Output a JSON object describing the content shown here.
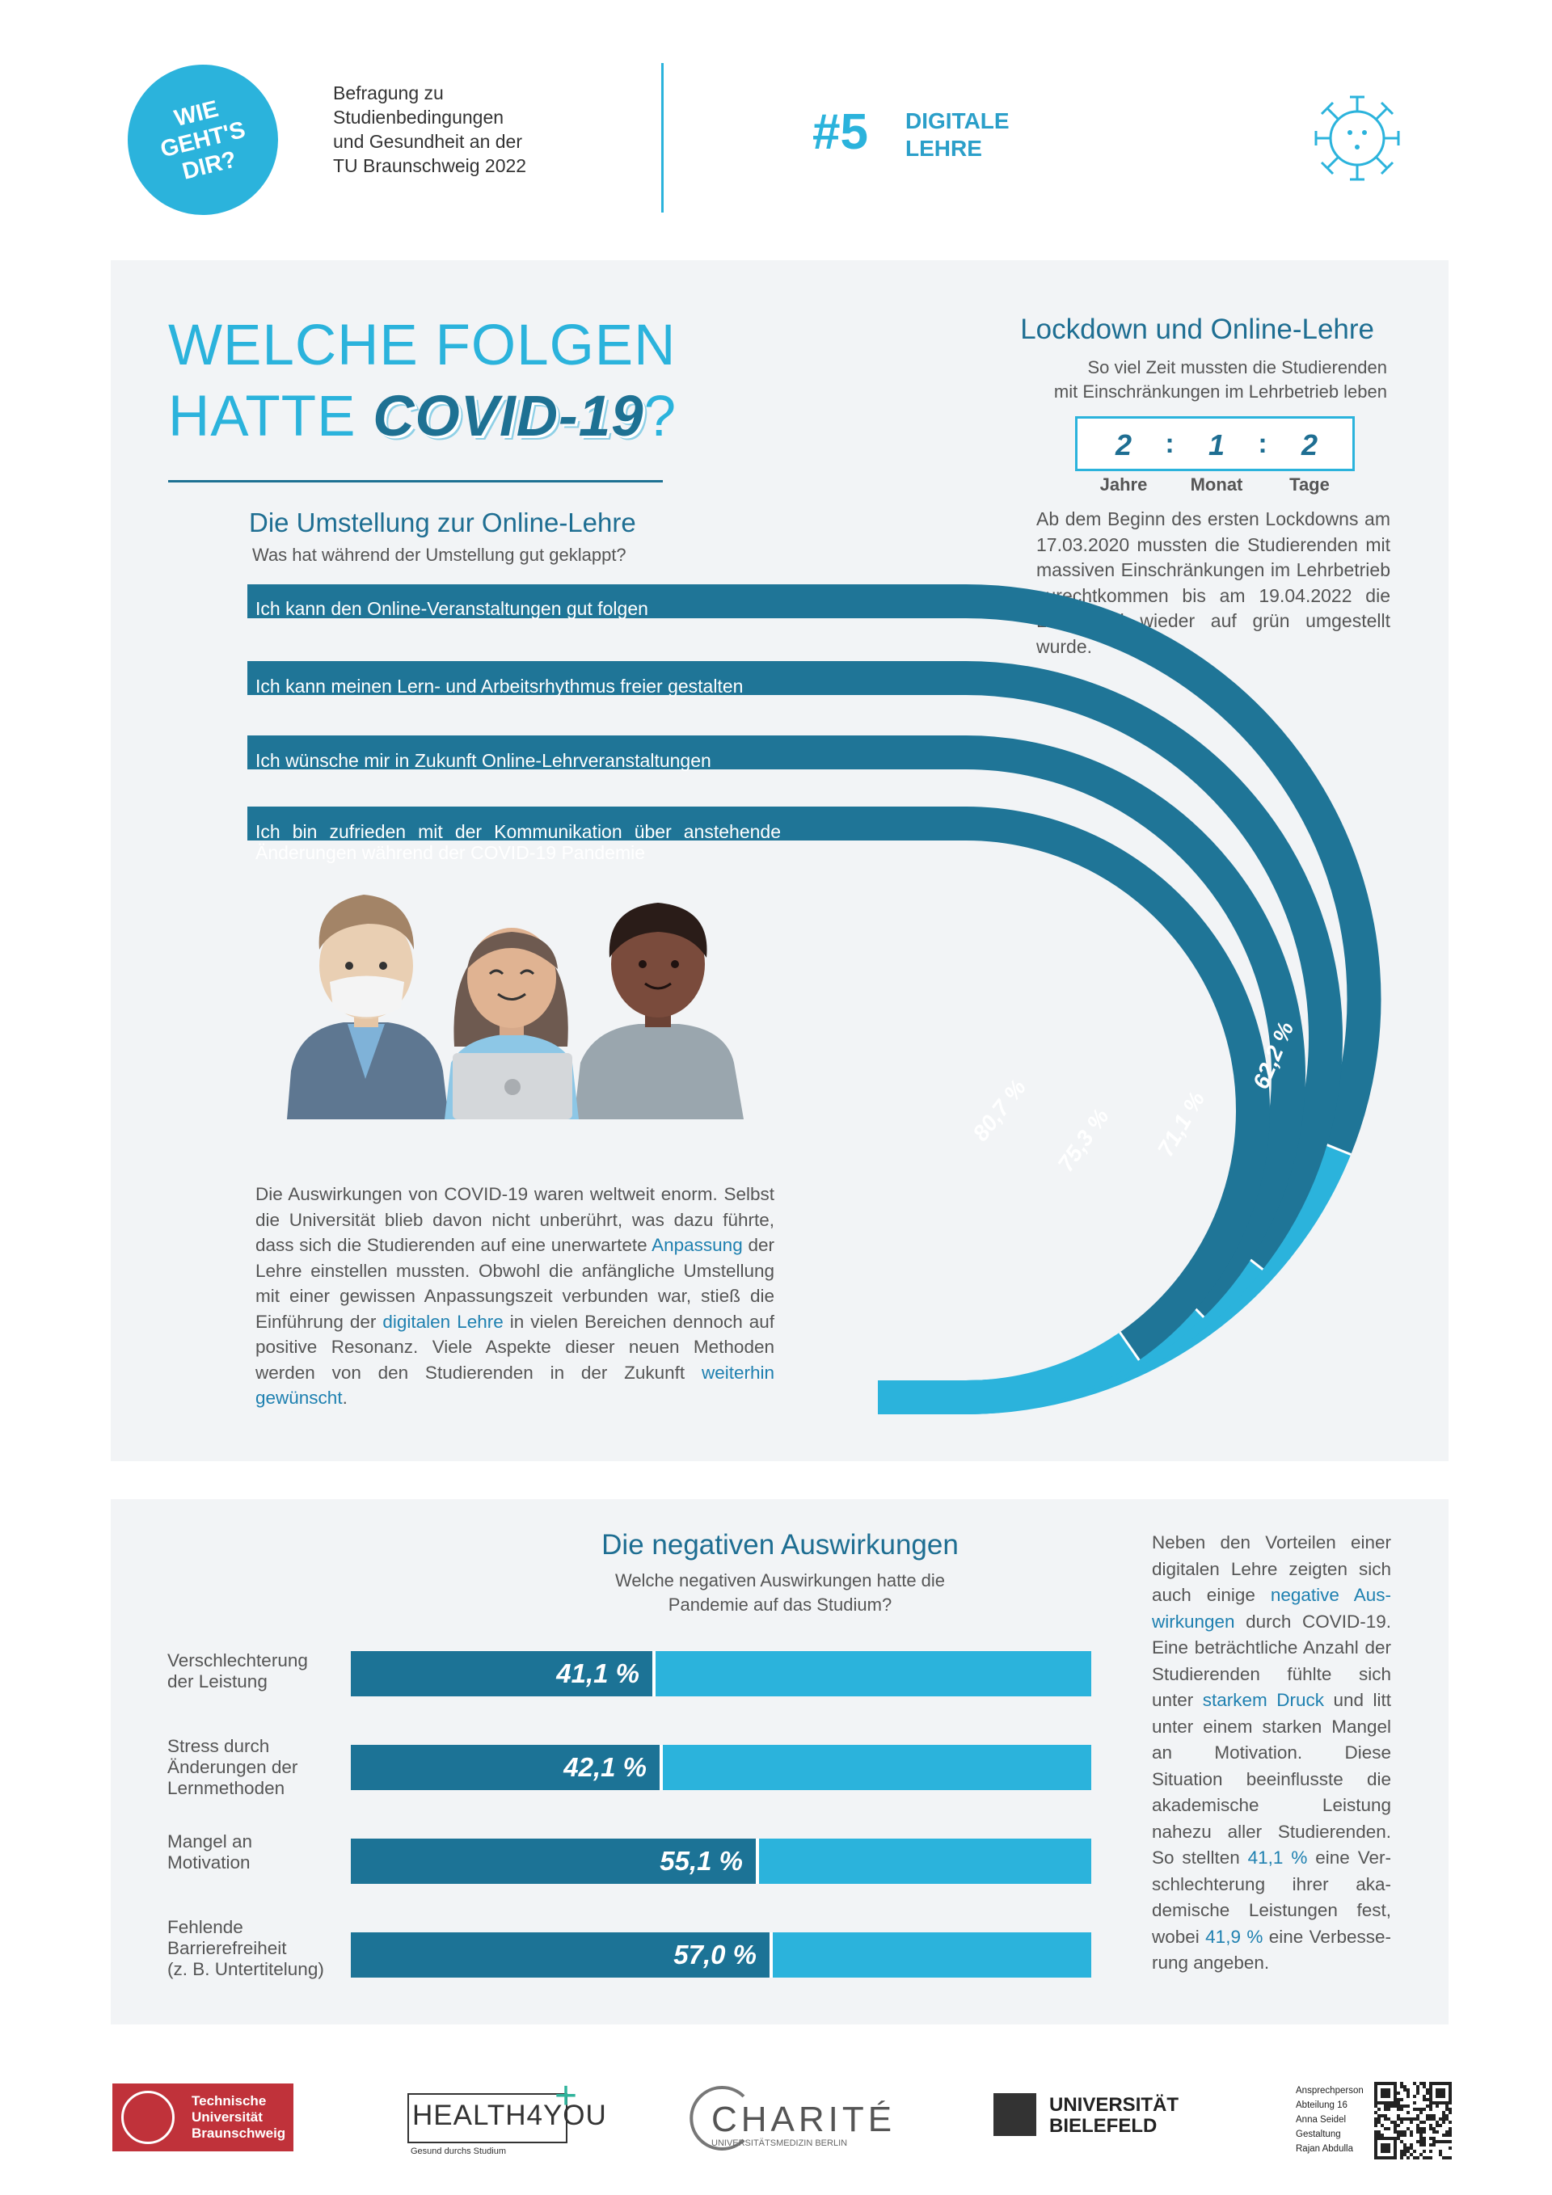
{
  "header": {
    "logo_lines": [
      "WIE",
      "GEHT'S",
      "DIR?"
    ],
    "survey_title": "Befragung zu\nStudienbedingungen\nund Gesundheit an der\nTU Braunschweig 2022",
    "issue_number": "#5",
    "issue_label": "DIGITALE\nLEHRE",
    "icon": "virus-icon",
    "accent_color": "#2bb3dc",
    "dark_color": "#1e6e92"
  },
  "hero": {
    "title_line1": "WELCHE FOLGEN",
    "title_line2_prefix": "HATTE ",
    "title_line2_highlight": "COVID-19",
    "title_line2_suffix": "?"
  },
  "lockdown": {
    "title": "Lockdown und Online-Lehre",
    "subtitle": "So viel Zeit mussten die Studierenden\nmit Einschränkungen im Lehrbetrieb leben",
    "years": "2",
    "months": "1",
    "days": "2",
    "separator": ":",
    "years_label": "Jahre",
    "months_label": "Monat",
    "days_label": "Tage",
    "paragraph": "Ab dem Beginn des ersten Lockdowns am 17.03.2020 mussten die Studierenden mit massiven Einschränkungen im Lehrbetrieb zurechtkommen bis am 19.04.2022 die Lehrampel wieder auf grün umgestellt wurde."
  },
  "online_switch": {
    "title": "Die Umstellung zur Online-Lehre",
    "subtitle": "Was hat während der Umstellung gut geklappt?",
    "items": [
      {
        "label": "Ich kann den Online-Veranstaltungen gut folgen",
        "value_label": "62,2 %"
      },
      {
        "label": "Ich kann meinen Lern- und Arbeitsrhythmus freier gestalten",
        "value_label": "71,1 %"
      },
      {
        "label": "Ich wünsche mir in Zukunft Online-Lehrveranstaltungen",
        "value_label": "75,3 %"
      },
      {
        "label": "Ich bin zufrieden mit der Kommunikation über anstehende Änderungen während der COVID-19 Pandemie",
        "value_label": "80,7 %"
      }
    ]
  },
  "intro": {
    "p1": "Die Auswirkungen von COVID-19 waren weltweit enorm. Selbst die Universität blieb davon nicht unberührt, was dazu führte, dass sich die Studierenden auf eine unerwartete ",
    "h1": "Anpassung",
    "p2": " der Lehre einstellen mussten. Obwohl die anfängliche Umstellung mit einer gewissen Anpassungszeit verbunden war, stieß die Einführung der ",
    "h2": "digitalen Lehre",
    "p3": " in vielen Bereichen dennoch auf positive Resonanz. Viele Aspekte dieser neuen Methoden werden von den Studierenden in der Zukunft ",
    "h3": "weiterhin gewünscht",
    "p4": "."
  },
  "negative": {
    "title": "Die negativen Auswirkungen",
    "subtitle": "Welche negativen Auswirkungen hatte die\nPandemie auf das Studium?",
    "items": [
      {
        "label": "Verschlechterung\nder Leistung",
        "value_label": "41,1 %"
      },
      {
        "label": "Stress durch\nÄnderungen der\nLernmethoden",
        "value_label": "42,1 %"
      },
      {
        "label": "Mangel an\nMotivation",
        "value_label": "55,1 %"
      },
      {
        "label": "Fehlende\nBarrierefreiheit\n(z. B. Untertitelung)",
        "value_label": "57,0 %"
      }
    ],
    "para": {
      "p1": "Neben den Vorteilen einer digitalen Lehre zeigten sich auch einige ",
      "h1": "negative Aus­wirkungen",
      "p2": " durch COVID-19. Eine beträchtliche Anzahl der Studierenden fühlte sich unter ",
      "h2": "starkem Druck",
      "p3": " und litt unter einem starken Mangel an Motivation. Diese Situation beeinflusste die akademische Leistung nahezu aller Studierenden. So stellten ",
      "h3": "41,1 %",
      "p4": " eine Ver­schlechterung ihrer aka­demische Leistungen fest, wobei ",
      "h4": "41,9 %",
      "p5": " eine Verbesse­rung angeben."
    }
  },
  "footer": {
    "tu_name": "Technische\nUniversität\nBraunschweig",
    "h4y_name": "HEALTH4YOU",
    "h4y_sub": "Gesund durchs Studium",
    "charite_name": "CHARITÉ",
    "charite_sub": "UNIVERSITÄTSMEDIZIN BERLIN",
    "bielefeld_name": "UNIVERSITÄT\nBIELEFELD",
    "contact": "Ansprechperson\nAbteilung 16\nAnna Seidel\nGestaltung\nRajan Abdulla"
  }
}
